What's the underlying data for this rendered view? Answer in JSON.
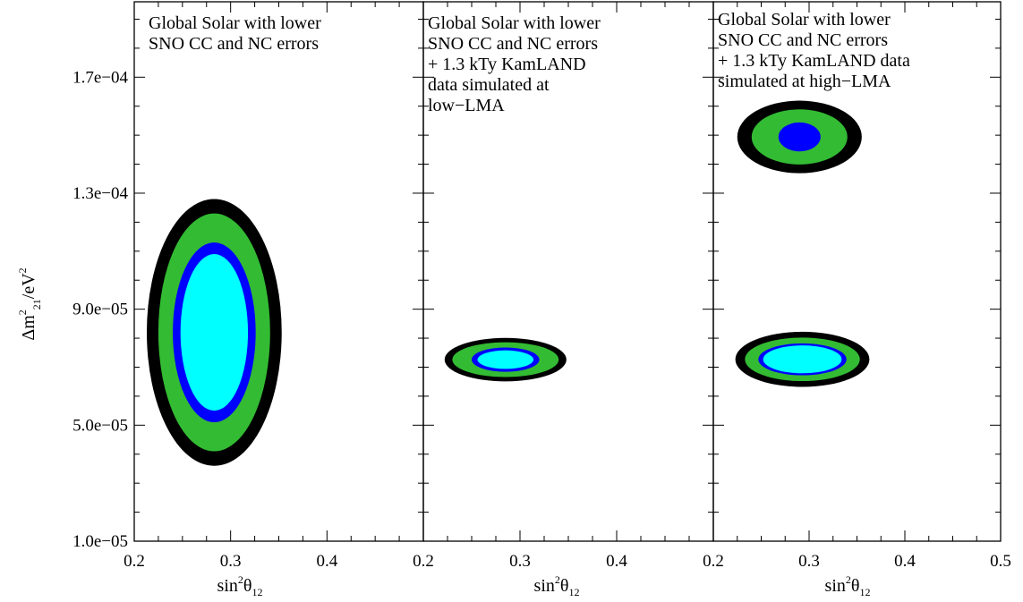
{
  "chart_data": {
    "type": "contour",
    "ylabel": {
      "main": "Δm",
      "sup": "2",
      "sub": "21",
      "rest": "/eV",
      "sup2": "2"
    },
    "xlabel": {
      "main": "sin",
      "sup": "2",
      "theta": "θ",
      "sub": "12"
    },
    "yticks": [
      "1.0e−05",
      "5.0e−05",
      "9.0e−05",
      "1.3e−04",
      "1.7e−04"
    ],
    "ytick_values": [
      1e-05,
      5e-05,
      9e-05,
      0.00013,
      0.00017
    ],
    "ylim": [
      1e-05,
      0.000196
    ],
    "confidence_colors": [
      "#00ffff",
      "#0000ff",
      "#33bb33",
      "#000000"
    ],
    "panels": [
      {
        "title_lines": [
          "Global Solar with lower",
          "SNO CC and NC errors"
        ],
        "xticks": [
          "0.2",
          "0.3",
          "0.4"
        ],
        "xtick_values": [
          0.2,
          0.3,
          0.4
        ],
        "xlim": [
          0.2,
          0.5
        ],
        "regions": [
          {
            "center": [
              0.283,
              8.2e-05
            ],
            "levels": [
              {
                "color": "#000000",
                "rx": 0.07,
                "ry": 4.6e-05
              },
              {
                "color": "#33bb33",
                "rx": 0.058,
                "ry": 4.1e-05
              },
              {
                "color": "#0000ff",
                "rx": 0.043,
                "ry": 3.1e-05
              },
              {
                "color": "#00ffff",
                "rx": 0.035,
                "ry": 2.7e-05
              }
            ]
          }
        ]
      },
      {
        "title_lines": [
          "Global Solar with lower",
          "SNO CC and NC errors",
          "+ 1.3 kTy KamLAND",
          "data simulated at",
          "low−LMA"
        ],
        "xticks": [
          "0.2",
          "0.3",
          "0.4"
        ],
        "xtick_values": [
          0.2,
          0.3,
          0.4
        ],
        "xlim": [
          0.2,
          0.5
        ],
        "regions": [
          {
            "center": [
              0.285,
              7.26e-05
            ],
            "levels": [
              {
                "color": "#000000",
                "rx": 0.063,
                "ry": 7.5e-06
              },
              {
                "color": "#33bb33",
                "rx": 0.055,
                "ry": 6e-06
              },
              {
                "color": "#0000ff",
                "rx": 0.035,
                "ry": 4.2e-06
              },
              {
                "color": "#00ffff",
                "rx": 0.029,
                "ry": 3.2e-06
              }
            ]
          }
        ]
      },
      {
        "title_lines": [
          "Global Solar with lower",
          "SNO CC and NC errors",
          "+ 1.3 kTy KamLAND data",
          "simulated at high−LMA"
        ],
        "xticks": [
          "0.2",
          "0.3",
          "0.4",
          "0.5"
        ],
        "xtick_values": [
          0.2,
          0.3,
          0.4,
          0.5
        ],
        "xlim": [
          0.2,
          0.5
        ],
        "regions": [
          {
            "center": [
              0.29,
              0.0001494
            ],
            "levels": [
              {
                "color": "#000000",
                "rx": 0.065,
                "ry": 1.25e-05
              },
              {
                "color": "#33bb33",
                "rx": 0.05,
                "ry": 9.5e-06
              },
              {
                "color": "#0000ff",
                "rx": 0.022,
                "ry": 5e-06
              }
            ]
          },
          {
            "center": [
              0.293,
              7.27e-05
            ],
            "levels": [
              {
                "color": "#000000",
                "rx": 0.07,
                "ry": 9.5e-06
              },
              {
                "color": "#33bb33",
                "rx": 0.06,
                "ry": 7.5e-06
              },
              {
                "color": "#0000ff",
                "rx": 0.046,
                "ry": 5.5e-06
              },
              {
                "color": "#00ffff",
                "rx": 0.041,
                "ry": 4.8e-06
              }
            ]
          }
        ]
      }
    ]
  }
}
